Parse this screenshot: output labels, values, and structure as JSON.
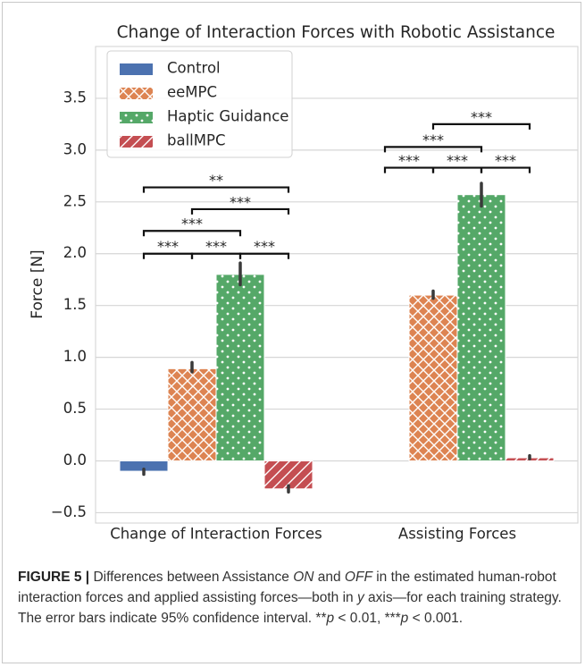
{
  "chart_data": {
    "type": "bar",
    "title": "Change of Interaction Forces with Robotic Assistance",
    "ylabel": "Force [N]",
    "categories": [
      "Change of Interaction Forces",
      "Assisting Forces"
    ],
    "series": [
      {
        "name": "Control",
        "color": "#4c72b0",
        "hatch": "none",
        "values": [
          -0.1,
          0
        ],
        "ci_low": [
          -0.13,
          null
        ],
        "ci_high": [
          -0.08,
          null
        ]
      },
      {
        "name": "eeMPC",
        "color": "#dd8452",
        "hatch": "x",
        "values": [
          0.89,
          1.6
        ],
        "ci_low": [
          0.86,
          1.57
        ],
        "ci_high": [
          0.95,
          1.64
        ]
      },
      {
        "name": "Haptic Guidance",
        "color": "#55a868",
        "hatch": "dots",
        "values": [
          1.8,
          2.57
        ],
        "ci_low": [
          1.7,
          2.46
        ],
        "ci_high": [
          1.91,
          2.68
        ]
      },
      {
        "name": "ballMPC",
        "color": "#c44e52",
        "hatch": "diag",
        "values": [
          -0.27,
          0.03
        ],
        "ci_low": [
          -0.3,
          0.02
        ],
        "ci_high": [
          -0.24,
          0.05
        ]
      }
    ],
    "ylim": [
      -0.6,
      4.0
    ],
    "yticks": [
      {
        "value": -0.5,
        "label": "−0.5"
      },
      {
        "value": 0,
        "label": "0.0"
      },
      0.5,
      {
        "value": 1,
        "label": "1.0"
      },
      1.5,
      {
        "value": 2,
        "label": "2.0"
      },
      2.5,
      {
        "value": 3,
        "label": "3.0"
      },
      3.5
    ],
    "grid": true,
    "legend": "upper left",
    "significance": [
      {
        "group": 0,
        "from": 0,
        "to": 1,
        "y": 2.0,
        "label": "***"
      },
      {
        "group": 0,
        "from": 1,
        "to": 2,
        "y": 2.0,
        "label": "***"
      },
      {
        "group": 0,
        "from": 2,
        "to": 3,
        "y": 2.0,
        "label": "***"
      },
      {
        "group": 0,
        "from": 0,
        "to": 2,
        "y": 2.22,
        "label": "***"
      },
      {
        "group": 0,
        "from": 1,
        "to": 3,
        "y": 2.43,
        "label": "***"
      },
      {
        "group": 0,
        "from": 0,
        "to": 3,
        "y": 2.64,
        "label": "**"
      },
      {
        "group": 1,
        "from": 0,
        "to": 1,
        "y": 2.83,
        "label": "***"
      },
      {
        "group": 1,
        "from": 1,
        "to": 2,
        "y": 2.83,
        "label": "***"
      },
      {
        "group": 1,
        "from": 2,
        "to": 3,
        "y": 2.83,
        "label": "***"
      },
      {
        "group": 1,
        "from": 0,
        "to": 2,
        "y": 3.03,
        "label": "***"
      },
      {
        "group": 1,
        "from": 1,
        "to": 3,
        "y": 3.25,
        "label": "***"
      }
    ]
  },
  "caption": {
    "label": "FIGURE 5 |",
    "parts": [
      " Differences between Assistance ",
      "ON",
      " and ",
      "OFF",
      " in the estimated human-robot interaction forces and applied assisting forces—both in ",
      "y",
      " axis—for each training strategy. The error bars indicate 95% confidence interval. **",
      "p",
      " < 0.01, ***",
      "p",
      " < 0.001."
    ]
  }
}
